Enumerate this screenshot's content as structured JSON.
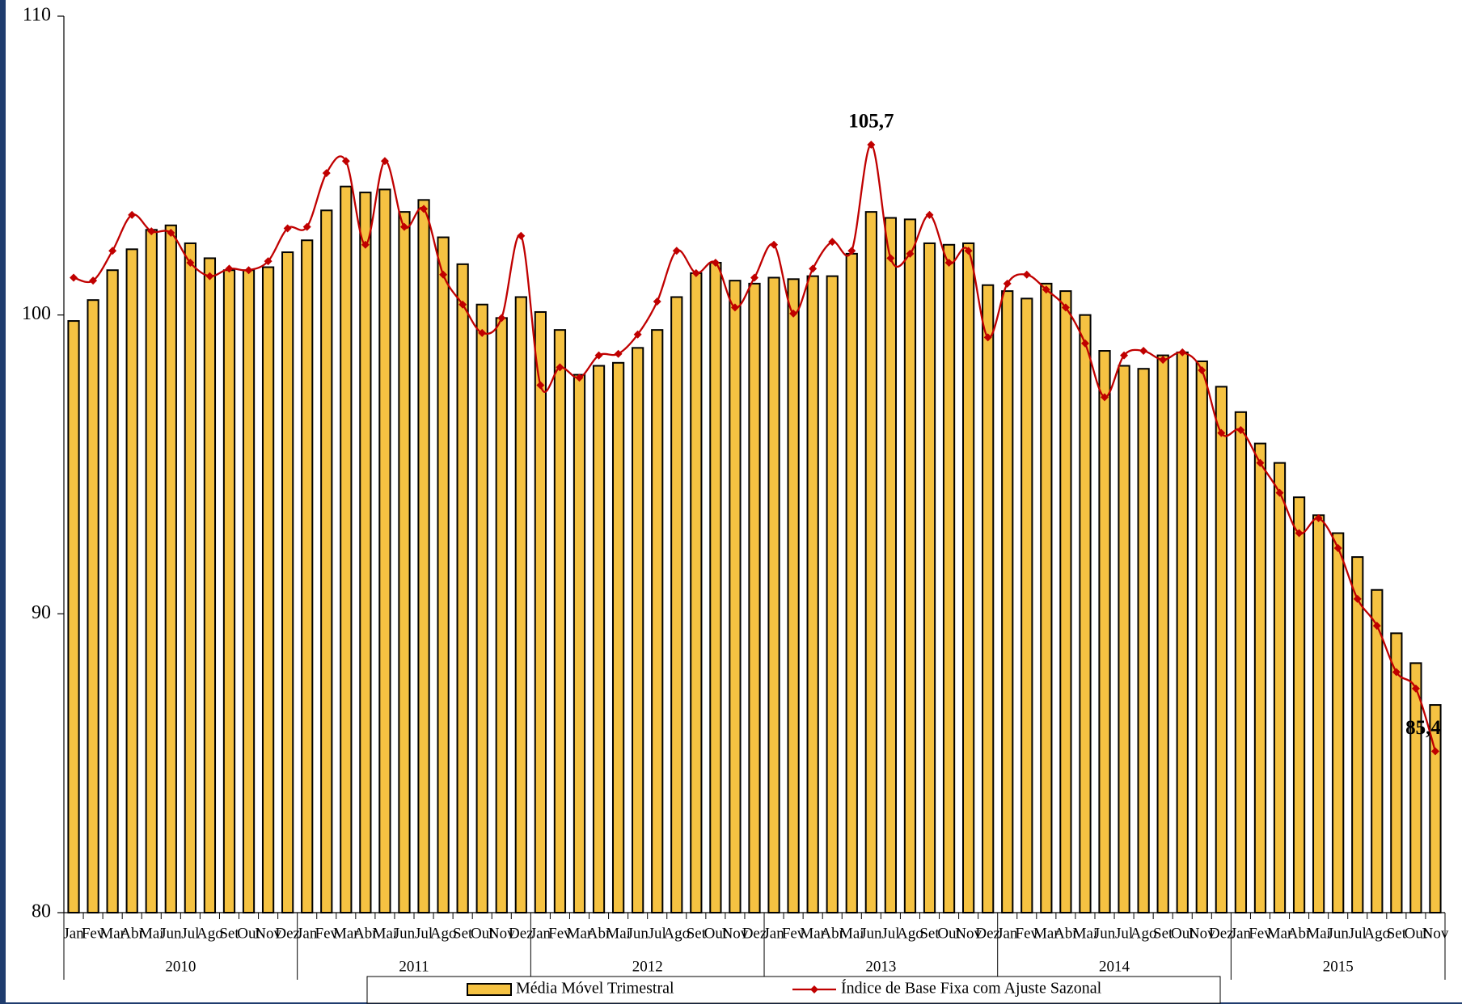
{
  "chart_data": {
    "type": "bar_line",
    "categories": [
      "Jan",
      "Fev",
      "Mar",
      "Abr",
      "Mai",
      "Jun",
      "Jul",
      "Ago",
      "Set",
      "Out",
      "Nov",
      "Dez",
      "Jan",
      "Fev",
      "Mar",
      "Abr",
      "Mai",
      "Jun",
      "Jul",
      "Ago",
      "Set",
      "Out",
      "Nov",
      "Dez",
      "Jan",
      "Fev",
      "Mar",
      "Abr",
      "Mai",
      "Jun",
      "Jul",
      "Ago",
      "Set",
      "Out",
      "Nov",
      "Dez",
      "Jan",
      "Fev",
      "Mar",
      "Abr",
      "Mai",
      "Jun",
      "Jul",
      "Ago",
      "Set",
      "Out",
      "Nov",
      "Dez",
      "Jan",
      "Fev",
      "Mar",
      "Abr",
      "Mai",
      "Jun",
      "Jul",
      "Ago",
      "Set",
      "Out",
      "Nov",
      "Dez",
      "Jan",
      "Fev",
      "Mar",
      "Abr",
      "Mai",
      "Jun",
      "Jul",
      "Ago",
      "Set",
      "Out",
      "Nov"
    ],
    "years": [
      "2010",
      "2011",
      "2012",
      "2013",
      "2014",
      "2015"
    ],
    "series": [
      {
        "name": "Média Móvel Trimestral",
        "type": "bar",
        "color": "#f5c242",
        "values": [
          99.8,
          100.5,
          101.5,
          102.2,
          102.85,
          103.0,
          102.4,
          101.9,
          101.5,
          101.5,
          101.6,
          102.1,
          102.5,
          103.5,
          104.3,
          104.1,
          104.2,
          103.45,
          103.85,
          102.6,
          101.7,
          100.35,
          99.9,
          100.6,
          100.1,
          99.5,
          98.0,
          98.3,
          98.4,
          98.9,
          99.5,
          100.6,
          101.4,
          101.75,
          101.15,
          101.05,
          101.25,
          101.2,
          101.3,
          101.3,
          102.05,
          103.45,
          103.25,
          103.2,
          102.4,
          102.35,
          102.4,
          101.0,
          100.8,
          100.55,
          101.05,
          100.8,
          100.0,
          98.8,
          98.3,
          98.2,
          98.65,
          98.75,
          98.45,
          97.6,
          96.75,
          95.7,
          95.05,
          93.9,
          93.3,
          92.7,
          91.9,
          90.8,
          89.35,
          88.35,
          86.95
        ]
      },
      {
        "name": "Índice de Base Fixa com Ajuste Sazonal",
        "type": "line",
        "color": "#c00000",
        "values": [
          101.25,
          101.15,
          102.15,
          103.35,
          102.8,
          102.75,
          101.75,
          101.3,
          101.55,
          101.5,
          101.8,
          102.9,
          102.95,
          104.75,
          105.15,
          102.35,
          105.15,
          102.95,
          103.55,
          101.35,
          100.35,
          99.4,
          99.9,
          102.65,
          97.65,
          98.25,
          97.9,
          98.65,
          98.7,
          99.35,
          100.45,
          102.15,
          101.4,
          101.75,
          100.25,
          101.25,
          102.35,
          100.05,
          101.55,
          102.45,
          102.15,
          105.7,
          101.9,
          102.05,
          103.35,
          101.75,
          102.15,
          99.25,
          101.05,
          101.35,
          100.85,
          100.25,
          99.05,
          97.25,
          98.65,
          98.8,
          98.5,
          98.75,
          98.15,
          96.05,
          96.15,
          95.05,
          94.05,
          92.7,
          93.2,
          92.2,
          90.5,
          89.6,
          88.05,
          87.5,
          85.4
        ],
        "value_labels": [
          null,
          null,
          null,
          null,
          null,
          null,
          null,
          null,
          null,
          null,
          null,
          null,
          null,
          null,
          null,
          null,
          null,
          null,
          null,
          null,
          null,
          null,
          null,
          null,
          null,
          null,
          null,
          null,
          null,
          null,
          null,
          null,
          null,
          null,
          null,
          null,
          null,
          null,
          null,
          null,
          null,
          "105,7",
          null,
          null,
          null,
          null,
          null,
          null,
          null,
          null,
          null,
          null,
          null,
          null,
          null,
          null,
          null,
          null,
          null,
          null,
          null,
          null,
          null,
          null,
          null,
          null,
          null,
          null,
          null,
          null,
          "85,4"
        ]
      }
    ],
    "ylim": [
      80,
      110
    ],
    "yticks": [
      80,
      90,
      100,
      110
    ],
    "legend": "bottom"
  }
}
